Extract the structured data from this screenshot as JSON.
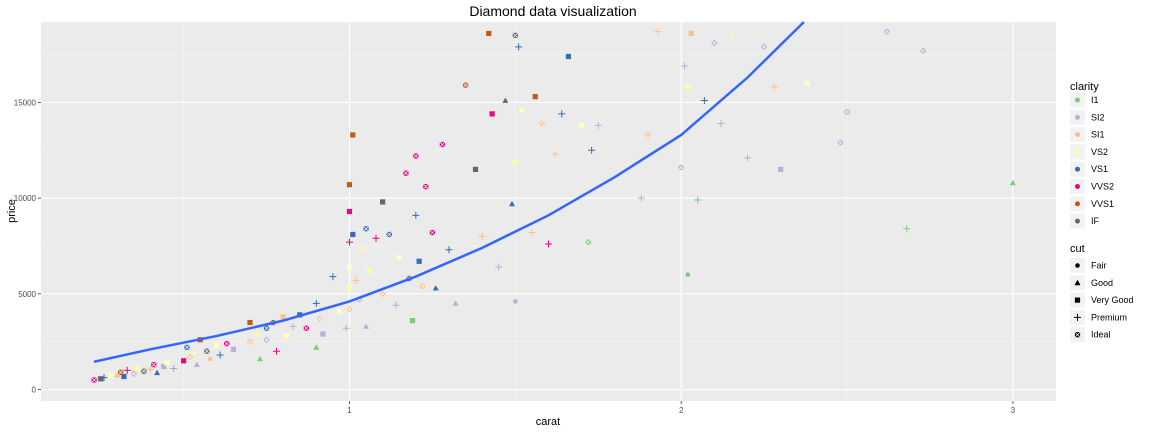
{
  "chart_data": {
    "type": "scatter",
    "title": "Diamond data visualization",
    "xlabel": "carat",
    "ylabel": "price",
    "xlim": [
      0.07,
      3.13
    ],
    "ylim": [
      -600,
      19200
    ],
    "xticks": [
      1,
      2,
      3
    ],
    "yticks": [
      0,
      5000,
      10000,
      15000
    ],
    "grid": true,
    "legend_position": "right",
    "colors": {
      "I1": "#7fc97f",
      "SI2": "#beaed4",
      "SI1": "#fdc086",
      "VS2": "#ffff99",
      "VS1": "#386cb0",
      "VVS2": "#f0027f",
      "VVS1": "#bf5b17",
      "IF": "#666666",
      "smooth": "#3366ff"
    },
    "legends": {
      "clarity": {
        "title": "clarity",
        "items": [
          "I1",
          "SI2",
          "SI1",
          "VS2",
          "VS1",
          "VVS2",
          "VVS1",
          "IF"
        ]
      },
      "cut": {
        "title": "cut",
        "items": [
          "Fair",
          "Good",
          "Very Good",
          "Premium",
          "Ideal"
        ],
        "shapes": [
          "circle",
          "triangle",
          "square",
          "plus",
          "square-x"
        ]
      }
    },
    "smooth_line": {
      "x": [
        0.23,
        0.4,
        0.6,
        0.8,
        1.0,
        1.2,
        1.4,
        1.6,
        1.8,
        2.0,
        2.2,
        2.37
      ],
      "y": [
        1450,
        2100,
        2800,
        3600,
        4600,
        5900,
        7400,
        9100,
        11100,
        13300,
        16300,
        19200
      ]
    },
    "points": [
      {
        "x": 0.23,
        "y": 500,
        "clarity": "VVS2",
        "cut": "Ideal"
      },
      {
        "x": 0.25,
        "y": 560,
        "clarity": "IF",
        "cut": "Very Good"
      },
      {
        "x": 0.26,
        "y": 620,
        "clarity": "VS1",
        "cut": "Premium"
      },
      {
        "x": 0.28,
        "y": 700,
        "clarity": "VS2",
        "cut": "Ideal"
      },
      {
        "x": 0.3,
        "y": 750,
        "clarity": "SI1",
        "cut": "Good"
      },
      {
        "x": 0.31,
        "y": 900,
        "clarity": "VVS1",
        "cut": "Ideal"
      },
      {
        "x": 0.32,
        "y": 680,
        "clarity": "VS1",
        "cut": "Very Good"
      },
      {
        "x": 0.33,
        "y": 1000,
        "clarity": "VVS2",
        "cut": "Premium"
      },
      {
        "x": 0.35,
        "y": 820,
        "clarity": "SI2",
        "cut": "Ideal"
      },
      {
        "x": 0.36,
        "y": 1100,
        "clarity": "VS2",
        "cut": "Very Good"
      },
      {
        "x": 0.38,
        "y": 950,
        "clarity": "IF",
        "cut": "Ideal"
      },
      {
        "x": 0.4,
        "y": 1050,
        "clarity": "SI1",
        "cut": "Premium"
      },
      {
        "x": 0.41,
        "y": 1300,
        "clarity": "VVS2",
        "cut": "Ideal"
      },
      {
        "x": 0.42,
        "y": 880,
        "clarity": "VS1",
        "cut": "Good"
      },
      {
        "x": 0.44,
        "y": 1200,
        "clarity": "SI2",
        "cut": "Very Good"
      },
      {
        "x": 0.45,
        "y": 1400,
        "clarity": "VS2",
        "cut": "Ideal"
      },
      {
        "x": 0.47,
        "y": 1100,
        "clarity": "I1",
        "cut": "Premium"
      },
      {
        "x": 0.5,
        "y": 1500,
        "clarity": "VVS2",
        "cut": "Very Good"
      },
      {
        "x": 0.51,
        "y": 2200,
        "clarity": "VS1",
        "cut": "Ideal"
      },
      {
        "x": 0.52,
        "y": 1700,
        "clarity": "SI1",
        "cut": "Ideal"
      },
      {
        "x": 0.53,
        "y": 1900,
        "clarity": "VS2",
        "cut": "Premium"
      },
      {
        "x": 0.54,
        "y": 1300,
        "clarity": "SI2",
        "cut": "Good"
      },
      {
        "x": 0.55,
        "y": 2600,
        "clarity": "VVS1",
        "cut": "Very Good"
      },
      {
        "x": 0.57,
        "y": 2000,
        "clarity": "IF",
        "cut": "Ideal"
      },
      {
        "x": 0.58,
        "y": 1600,
        "clarity": "SI1",
        "cut": "Fair"
      },
      {
        "x": 0.6,
        "y": 2300,
        "clarity": "VS2",
        "cut": "Ideal"
      },
      {
        "x": 0.61,
        "y": 1800,
        "clarity": "VS1",
        "cut": "Premium"
      },
      {
        "x": 0.63,
        "y": 2400,
        "clarity": "VVS2",
        "cut": "Ideal"
      },
      {
        "x": 0.65,
        "y": 2100,
        "clarity": "SI2",
        "cut": "Very Good"
      },
      {
        "x": 0.7,
        "y": 2500,
        "clarity": "SI1",
        "cut": "Ideal"
      },
      {
        "x": 0.7,
        "y": 3500,
        "clarity": "VVS1",
        "cut": "Very Good"
      },
      {
        "x": 0.72,
        "y": 2900,
        "clarity": "VS2",
        "cut": "Premium"
      },
      {
        "x": 0.73,
        "y": 1600,
        "clarity": "I1",
        "cut": "Good"
      },
      {
        "x": 0.75,
        "y": 3200,
        "clarity": "VS1",
        "cut": "Ideal"
      },
      {
        "x": 0.75,
        "y": 2600,
        "clarity": "SI2",
        "cut": "Ideal"
      },
      {
        "x": 0.77,
        "y": 3500,
        "clarity": "IF",
        "cut": "Ideal"
      },
      {
        "x": 0.78,
        "y": 2000,
        "clarity": "VVS2",
        "cut": "Premium"
      },
      {
        "x": 0.8,
        "y": 3800,
        "clarity": "SI1",
        "cut": "Very Good"
      },
      {
        "x": 0.81,
        "y": 2800,
        "clarity": "VS2",
        "cut": "Ideal"
      },
      {
        "x": 0.83,
        "y": 3300,
        "clarity": "SI2",
        "cut": "Premium"
      },
      {
        "x": 0.85,
        "y": 3900,
        "clarity": "VS1",
        "cut": "Very Good"
      },
      {
        "x": 0.87,
        "y": 3200,
        "clarity": "VVS2",
        "cut": "Ideal"
      },
      {
        "x": 0.9,
        "y": 2200,
        "clarity": "I1",
        "cut": "Good"
      },
      {
        "x": 0.9,
        "y": 4500,
        "clarity": "VS1",
        "cut": "Premium"
      },
      {
        "x": 0.91,
        "y": 3700,
        "clarity": "SI1",
        "cut": "Ideal"
      },
      {
        "x": 0.92,
        "y": 2900,
        "clarity": "SI2",
        "cut": "Very Good"
      },
      {
        "x": 0.95,
        "y": 5900,
        "clarity": "VS1",
        "cut": "Premium"
      },
      {
        "x": 0.97,
        "y": 4100,
        "clarity": "VS2",
        "cut": "Ideal"
      },
      {
        "x": 0.99,
        "y": 3200,
        "clarity": "SI2",
        "cut": "Premium"
      },
      {
        "x": 1.0,
        "y": 4200,
        "clarity": "SI1",
        "cut": "Ideal"
      },
      {
        "x": 1.0,
        "y": 5300,
        "clarity": "VS2",
        "cut": "Very Good"
      },
      {
        "x": 1.0,
        "y": 6400,
        "clarity": "VS2",
        "cut": "Ideal"
      },
      {
        "x": 1.0,
        "y": 7700,
        "clarity": "VVS2",
        "cut": "Premium"
      },
      {
        "x": 1.0,
        "y": 9300,
        "clarity": "VVS2",
        "cut": "Very Good"
      },
      {
        "x": 1.0,
        "y": 10700,
        "clarity": "VVS1",
        "cut": "Very Good"
      },
      {
        "x": 1.01,
        "y": 13300,
        "clarity": "VVS1",
        "cut": "Very Good"
      },
      {
        "x": 1.01,
        "y": 8100,
        "clarity": "VS1",
        "cut": "Very Good"
      },
      {
        "x": 1.02,
        "y": 5700,
        "clarity": "SI1",
        "cut": "Premium"
      },
      {
        "x": 1.03,
        "y": 4700,
        "clarity": "SI2",
        "cut": "Ideal"
      },
      {
        "x": 1.04,
        "y": 7300,
        "clarity": "VS2",
        "cut": "Premium"
      },
      {
        "x": 1.05,
        "y": 3300,
        "clarity": "SI2",
        "cut": "Good"
      },
      {
        "x": 1.05,
        "y": 8400,
        "clarity": "VS1",
        "cut": "Ideal"
      },
      {
        "x": 1.06,
        "y": 6200,
        "clarity": "VS2",
        "cut": "Very Good"
      },
      {
        "x": 1.08,
        "y": 7900,
        "clarity": "VVS2",
        "cut": "Premium"
      },
      {
        "x": 1.1,
        "y": 9800,
        "clarity": "IF",
        "cut": "Very Good"
      },
      {
        "x": 1.1,
        "y": 5000,
        "clarity": "SI1",
        "cut": "Ideal"
      },
      {
        "x": 1.12,
        "y": 8100,
        "clarity": "VS1",
        "cut": "Ideal"
      },
      {
        "x": 1.14,
        "y": 4400,
        "clarity": "SI2",
        "cut": "Premium"
      },
      {
        "x": 1.15,
        "y": 6900,
        "clarity": "VS2",
        "cut": "Ideal"
      },
      {
        "x": 1.17,
        "y": 11300,
        "clarity": "VVS2",
        "cut": "Ideal"
      },
      {
        "x": 1.18,
        "y": 5800,
        "clarity": "IF",
        "cut": "Ideal"
      },
      {
        "x": 1.19,
        "y": 3600,
        "clarity": "I1",
        "cut": "Very Good"
      },
      {
        "x": 1.2,
        "y": 12200,
        "clarity": "VVS2",
        "cut": "Ideal"
      },
      {
        "x": 1.2,
        "y": 9100,
        "clarity": "VS1",
        "cut": "Premium"
      },
      {
        "x": 1.21,
        "y": 6700,
        "clarity": "VS1",
        "cut": "Very Good"
      },
      {
        "x": 1.22,
        "y": 5400,
        "clarity": "SI1",
        "cut": "Ideal"
      },
      {
        "x": 1.23,
        "y": 10600,
        "clarity": "VVS2",
        "cut": "Ideal"
      },
      {
        "x": 1.25,
        "y": 8200,
        "clarity": "VVS2",
        "cut": "Ideal"
      },
      {
        "x": 1.26,
        "y": 5300,
        "clarity": "VS1",
        "cut": "Good"
      },
      {
        "x": 1.28,
        "y": 12800,
        "clarity": "VVS2",
        "cut": "Ideal"
      },
      {
        "x": 1.3,
        "y": 7300,
        "clarity": "VS1",
        "cut": "Premium"
      },
      {
        "x": 1.32,
        "y": 4500,
        "clarity": "SI2",
        "cut": "Good"
      },
      {
        "x": 1.35,
        "y": 15900,
        "clarity": "VVS1",
        "cut": "Ideal"
      },
      {
        "x": 1.38,
        "y": 11500,
        "clarity": "IF",
        "cut": "Very Good"
      },
      {
        "x": 1.4,
        "y": 8000,
        "clarity": "SI1",
        "cut": "Premium"
      },
      {
        "x": 1.42,
        "y": 18600,
        "clarity": "VVS1",
        "cut": "Very Good"
      },
      {
        "x": 1.43,
        "y": 14400,
        "clarity": "VVS2",
        "cut": "Very Good"
      },
      {
        "x": 1.45,
        "y": 6400,
        "clarity": "SI2",
        "cut": "Premium"
      },
      {
        "x": 1.47,
        "y": 15100,
        "clarity": "IF",
        "cut": "Good"
      },
      {
        "x": 1.49,
        "y": 9700,
        "clarity": "VS1",
        "cut": "Good"
      },
      {
        "x": 1.5,
        "y": 18500,
        "clarity": "IF",
        "cut": "Ideal"
      },
      {
        "x": 1.5,
        "y": 11900,
        "clarity": "VS2",
        "cut": "Very Good"
      },
      {
        "x": 1.5,
        "y": 4600,
        "clarity": "SI2",
        "cut": "Fair"
      },
      {
        "x": 1.51,
        "y": 17900,
        "clarity": "VS1",
        "cut": "Premium"
      },
      {
        "x": 1.52,
        "y": 14600,
        "clarity": "VS2",
        "cut": "Ideal"
      },
      {
        "x": 1.55,
        "y": 8200,
        "clarity": "SI1",
        "cut": "Premium"
      },
      {
        "x": 1.56,
        "y": 15300,
        "clarity": "VVS1",
        "cut": "Very Good"
      },
      {
        "x": 1.58,
        "y": 13900,
        "clarity": "SI1",
        "cut": "Ideal"
      },
      {
        "x": 1.6,
        "y": 7600,
        "clarity": "VVS2",
        "cut": "Premium"
      },
      {
        "x": 1.62,
        "y": 12300,
        "clarity": "SI1",
        "cut": "Premium"
      },
      {
        "x": 1.64,
        "y": 14400,
        "clarity": "VS1",
        "cut": "Premium"
      },
      {
        "x": 1.66,
        "y": 17400,
        "clarity": "VS1",
        "cut": "Very Good"
      },
      {
        "x": 1.7,
        "y": 13800,
        "clarity": "VS2",
        "cut": "Ideal"
      },
      {
        "x": 1.72,
        "y": 7700,
        "clarity": "I1",
        "cut": "Ideal"
      },
      {
        "x": 1.73,
        "y": 12500,
        "clarity": "VS1",
        "cut": "Premium"
      },
      {
        "x": 1.75,
        "y": 13800,
        "clarity": "SI2",
        "cut": "Premium"
      },
      {
        "x": 1.88,
        "y": 10000,
        "clarity": "SI2",
        "cut": "Premium"
      },
      {
        "x": 1.9,
        "y": 13300,
        "clarity": "SI1",
        "cut": "Premium"
      },
      {
        "x": 1.93,
        "y": 18700,
        "clarity": "SI1",
        "cut": "Premium"
      },
      {
        "x": 2.0,
        "y": 11600,
        "clarity": "SI2",
        "cut": "Ideal"
      },
      {
        "x": 2.01,
        "y": 16900,
        "clarity": "SI2",
        "cut": "Premium"
      },
      {
        "x": 2.02,
        "y": 15800,
        "clarity": "VS2",
        "cut": "Very Good"
      },
      {
        "x": 2.02,
        "y": 6000,
        "clarity": "I1",
        "cut": "Fair"
      },
      {
        "x": 2.03,
        "y": 18600,
        "clarity": "SI1",
        "cut": "Very Good"
      },
      {
        "x": 2.05,
        "y": 9900,
        "clarity": "I1",
        "cut": "Premium"
      },
      {
        "x": 2.07,
        "y": 15100,
        "clarity": "VS1",
        "cut": "Premium"
      },
      {
        "x": 2.1,
        "y": 18100,
        "clarity": "SI2",
        "cut": "Ideal"
      },
      {
        "x": 2.12,
        "y": 13900,
        "clarity": "SI2",
        "cut": "Premium"
      },
      {
        "x": 2.15,
        "y": 18500,
        "clarity": "VS2",
        "cut": "Premium"
      },
      {
        "x": 2.2,
        "y": 12100,
        "clarity": "SI2",
        "cut": "Premium"
      },
      {
        "x": 2.25,
        "y": 17900,
        "clarity": "SI2",
        "cut": "Ideal"
      },
      {
        "x": 2.28,
        "y": 15800,
        "clarity": "SI1",
        "cut": "Premium"
      },
      {
        "x": 2.3,
        "y": 11500,
        "clarity": "SI2",
        "cut": "Very Good"
      },
      {
        "x": 2.38,
        "y": 16000,
        "clarity": "VS2",
        "cut": "Ideal"
      },
      {
        "x": 2.48,
        "y": 12900,
        "clarity": "SI2",
        "cut": "Ideal"
      },
      {
        "x": 2.5,
        "y": 14500,
        "clarity": "SI2",
        "cut": "Ideal"
      },
      {
        "x": 2.62,
        "y": 18700,
        "clarity": "SI2",
        "cut": "Ideal"
      },
      {
        "x": 2.68,
        "y": 8400,
        "clarity": "I1",
        "cut": "Premium"
      },
      {
        "x": 2.73,
        "y": 17700,
        "clarity": "SI2",
        "cut": "Ideal"
      },
      {
        "x": 3.0,
        "y": 10800,
        "clarity": "I1",
        "cut": "Good"
      }
    ]
  }
}
